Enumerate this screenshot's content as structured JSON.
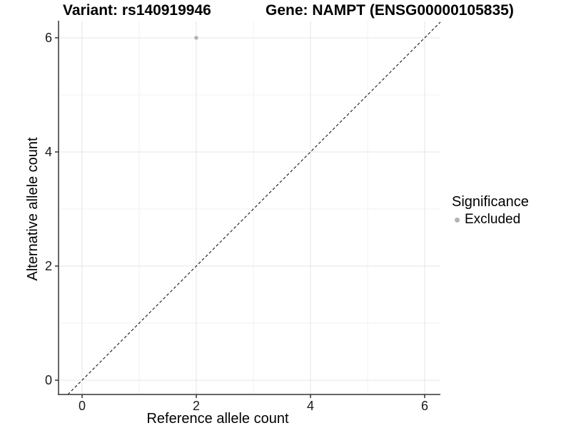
{
  "header": {
    "variant_title": "Variant: rs140919946",
    "gene_title": "Gene: NAMPT (ENSG00000105835)"
  },
  "chart_data": {
    "type": "scatter",
    "title_left": "Variant: rs140919946",
    "title_right": "Gene: NAMPT (ENSG00000105835)",
    "xlabel": "Reference allele count",
    "ylabel": "Alternative allele count",
    "x_ticks": [
      0,
      2,
      4,
      6
    ],
    "y_ticks": [
      0,
      2,
      4,
      6
    ],
    "x_minor_ticks": [
      1,
      3,
      5
    ],
    "y_minor_ticks": [
      1,
      3,
      5
    ],
    "xlim": [
      -0.4125,
      6.275
    ],
    "ylim": [
      -0.25,
      6.2875
    ],
    "grid": true,
    "points": [
      {
        "x": 2,
        "y": 6,
        "series": "Excluded"
      }
    ],
    "reference_line": {
      "type": "identity",
      "style": "dashed",
      "color": "#000000"
    },
    "legend": {
      "title": "Significance",
      "position": "right",
      "items": [
        {
          "label": "Excluded",
          "color": "#b3b3b3"
        }
      ]
    }
  },
  "colors": {
    "background": "#ffffff",
    "point": "#b3b3b3",
    "grid_major": "#e4e4e4",
    "grid_minor": "#f1f1f1",
    "axis_line": "#333333",
    "tick_label": "#1a1a1a"
  }
}
